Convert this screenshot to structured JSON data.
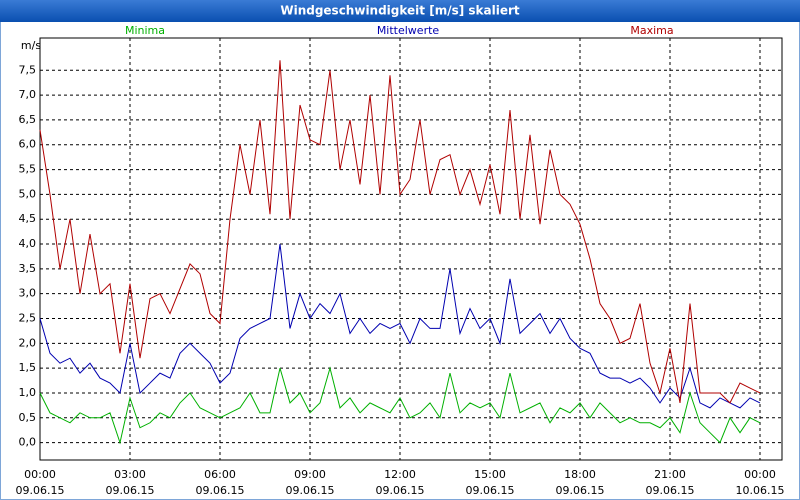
{
  "chart_data": {
    "type": "line",
    "title": "Windgeschwindigkeit [m/s] skaliert",
    "ylabel": "m/s",
    "xlim": [
      0,
      1484
    ],
    "ylim": [
      -0.35,
      8.15
    ],
    "grid": true,
    "xticks": [
      {
        "value": 0,
        "label": [
          "00:00",
          "09.06.15"
        ]
      },
      {
        "value": 180,
        "label": [
          "03:00",
          "09.06.15"
        ]
      },
      {
        "value": 360,
        "label": [
          "06:00",
          "09.06.15"
        ]
      },
      {
        "value": 540,
        "label": [
          "09:00",
          "09.06.15"
        ]
      },
      {
        "value": 720,
        "label": [
          "12:00",
          "09.06.15"
        ]
      },
      {
        "value": 900,
        "label": [
          "15:00",
          "09.06.15"
        ]
      },
      {
        "value": 1080,
        "label": [
          "18:00",
          "09.06.15"
        ]
      },
      {
        "value": 1260,
        "label": [
          "21:00",
          "09.06.15"
        ]
      },
      {
        "value": 1440,
        "label": [
          "00:00",
          "10.06.15"
        ]
      }
    ],
    "yticks": [
      {
        "value": 0,
        "label": "0,0"
      },
      {
        "value": 0.5,
        "label": "0,5"
      },
      {
        "value": 1,
        "label": "1,0"
      },
      {
        "value": 1.5,
        "label": "1,5"
      },
      {
        "value": 2,
        "label": "2,0"
      },
      {
        "value": 2.5,
        "label": "2,5"
      },
      {
        "value": 3,
        "label": "3,0"
      },
      {
        "value": 3.5,
        "label": "3,5"
      },
      {
        "value": 4,
        "label": "4,0"
      },
      {
        "value": 4.5,
        "label": "4,5"
      },
      {
        "value": 5,
        "label": "5,0"
      },
      {
        "value": 5.5,
        "label": "5,5"
      },
      {
        "value": 6,
        "label": "6,0"
      },
      {
        "value": 6.5,
        "label": "6,5"
      },
      {
        "value": 7,
        "label": "7,0"
      },
      {
        "value": 7.5,
        "label": "7,5"
      }
    ],
    "x": [
      0,
      20,
      40,
      60,
      80,
      100,
      120,
      140,
      160,
      180,
      200,
      220,
      240,
      260,
      280,
      300,
      320,
      340,
      360,
      380,
      400,
      420,
      440,
      460,
      480,
      500,
      520,
      540,
      560,
      580,
      600,
      620,
      640,
      660,
      680,
      700,
      720,
      740,
      760,
      780,
      800,
      820,
      840,
      860,
      880,
      900,
      920,
      940,
      960,
      980,
      1000,
      1020,
      1040,
      1060,
      1080,
      1100,
      1120,
      1140,
      1160,
      1180,
      1200,
      1220,
      1240,
      1260,
      1280,
      1300,
      1320,
      1340,
      1360,
      1380,
      1400,
      1420,
      1440
    ],
    "series": [
      {
        "name": "Minima",
        "color": "#00b000",
        "values": [
          1.0,
          0.6,
          0.5,
          0.4,
          0.6,
          0.5,
          0.5,
          0.6,
          0.0,
          0.9,
          0.3,
          0.4,
          0.6,
          0.5,
          0.8,
          1.0,
          0.7,
          0.6,
          0.5,
          0.6,
          0.7,
          1.0,
          0.6,
          0.6,
          1.5,
          0.8,
          1.0,
          0.6,
          0.8,
          1.5,
          0.7,
          0.9,
          0.6,
          0.8,
          0.7,
          0.6,
          0.9,
          0.5,
          0.6,
          0.8,
          0.5,
          1.4,
          0.6,
          0.8,
          0.7,
          0.8,
          0.5,
          1.4,
          0.6,
          0.7,
          0.8,
          0.4,
          0.7,
          0.6,
          0.8,
          0.5,
          0.8,
          0.6,
          0.4,
          0.5,
          0.4,
          0.4,
          0.3,
          0.5,
          0.2,
          1.0,
          0.4,
          0.2,
          0.0,
          0.5,
          0.2,
          0.5,
          0.4
        ]
      },
      {
        "name": "Mittelwerte",
        "color": "#0000b0",
        "values": [
          2.5,
          1.8,
          1.6,
          1.7,
          1.4,
          1.6,
          1.3,
          1.2,
          1.0,
          2.0,
          1.0,
          1.2,
          1.4,
          1.3,
          1.8,
          2.0,
          1.8,
          1.6,
          1.2,
          1.4,
          2.1,
          2.3,
          2.4,
          2.5,
          4.0,
          2.3,
          3.0,
          2.5,
          2.8,
          2.6,
          3.0,
          2.2,
          2.5,
          2.2,
          2.4,
          2.3,
          2.4,
          2.0,
          2.5,
          2.3,
          2.3,
          3.5,
          2.2,
          2.7,
          2.3,
          2.5,
          2.0,
          3.3,
          2.2,
          2.4,
          2.6,
          2.2,
          2.5,
          2.1,
          1.9,
          1.8,
          1.4,
          1.3,
          1.3,
          1.2,
          1.3,
          1.1,
          0.8,
          1.1,
          0.9,
          1.5,
          0.8,
          0.7,
          0.9,
          0.8,
          0.7,
          0.9,
          0.8
        ]
      },
      {
        "name": "Maxima",
        "color": "#b00000",
        "values": [
          6.3,
          5.0,
          3.5,
          4.5,
          3.0,
          4.2,
          3.0,
          3.2,
          1.8,
          3.2,
          1.7,
          2.9,
          3.0,
          2.6,
          3.1,
          3.6,
          3.4,
          2.6,
          2.4,
          4.5,
          6.0,
          5.0,
          6.5,
          4.6,
          7.7,
          4.5,
          6.8,
          6.1,
          6.0,
          7.5,
          5.5,
          6.5,
          5.2,
          7.0,
          5.0,
          7.4,
          5.0,
          5.3,
          6.5,
          5.0,
          5.7,
          5.8,
          5.0,
          5.5,
          4.8,
          5.6,
          4.6,
          6.7,
          4.5,
          6.2,
          4.4,
          5.9,
          5.0,
          4.8,
          4.4,
          3.7,
          2.8,
          2.5,
          2.0,
          2.1,
          2.8,
          1.6,
          1.0,
          1.9,
          0.8,
          2.8,
          1.0,
          1.0,
          1.0,
          0.8,
          1.2,
          1.1,
          1.0
        ]
      }
    ]
  }
}
